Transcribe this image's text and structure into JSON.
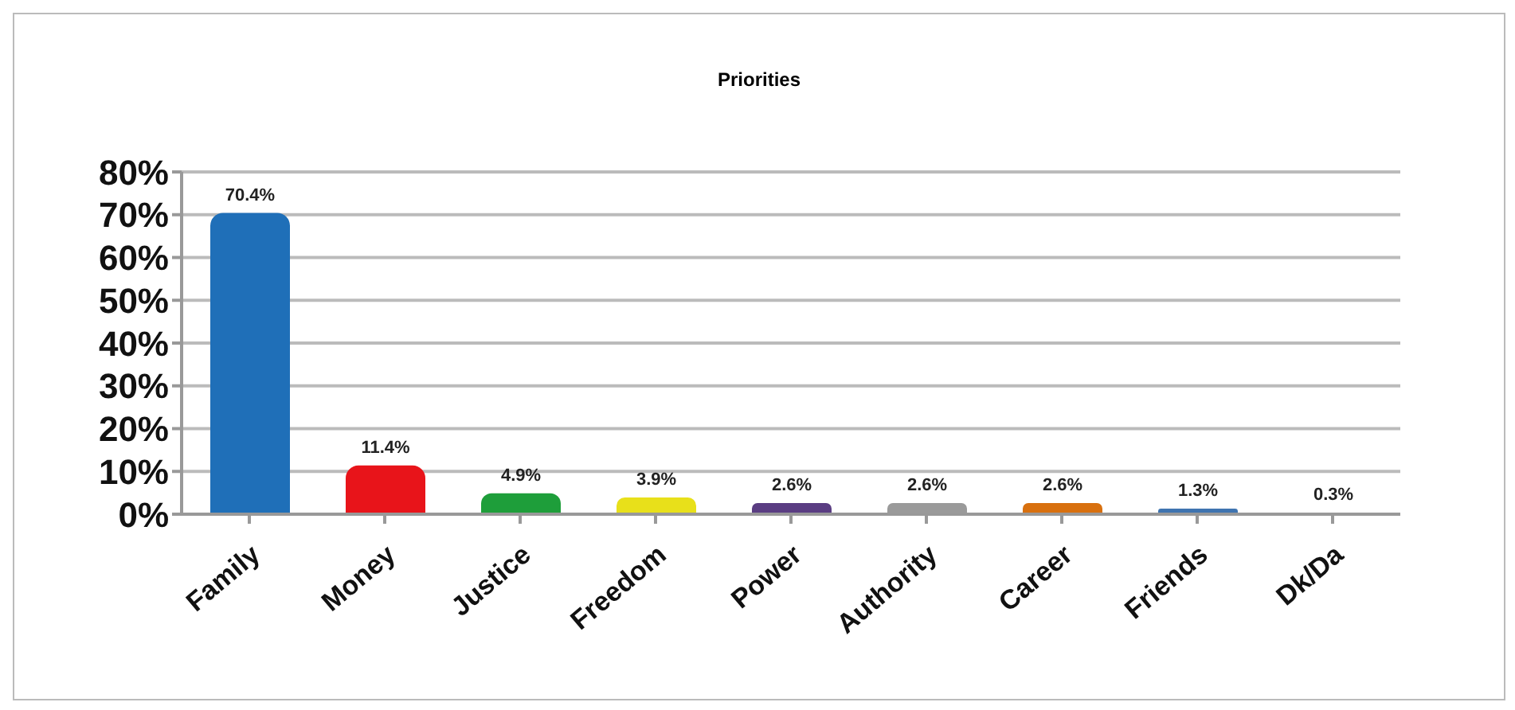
{
  "chart_data": {
    "type": "bar",
    "title": "Priorities",
    "categories": [
      "Family",
      "Money",
      "Justice",
      "Freedom",
      "Power",
      "Authority",
      "Career",
      "Friends",
      "Dk/Da"
    ],
    "values": [
      70.4,
      11.4,
      4.9,
      3.9,
      2.6,
      2.6,
      2.6,
      1.3,
      0.3
    ],
    "value_labels": [
      "70.4%",
      "11.4%",
      "4.9%",
      "3.9%",
      "2.6%",
      "2.6%",
      "2.6%",
      "1.3%",
      "0.3%"
    ],
    "colors": [
      "#1f6fb8",
      "#e8141a",
      "#1e9e3a",
      "#e8e01a",
      "#5a3d82",
      "#9a9a9a",
      "#d8700f",
      "#3f74b0",
      "#c98a88"
    ],
    "ylim": [
      0,
      80
    ],
    "yticks": [
      {
        "value": 0,
        "label": "0%"
      },
      {
        "value": 10,
        "label": "10%"
      },
      {
        "value": 20,
        "label": "20%"
      },
      {
        "value": 30,
        "label": "30%"
      },
      {
        "value": 40,
        "label": "40%"
      },
      {
        "value": 50,
        "label": "50%"
      },
      {
        "value": 60,
        "label": "60%"
      },
      {
        "value": 70,
        "label": "70%"
      },
      {
        "value": 80,
        "label": "80%"
      }
    ],
    "grid": "y"
  }
}
